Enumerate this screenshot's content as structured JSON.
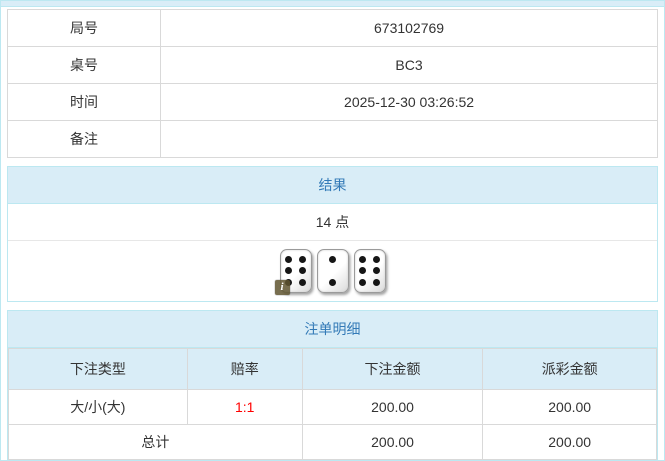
{
  "info_table": {
    "rows": [
      {
        "label": "局号",
        "value": "673102769"
      },
      {
        "label": "桌号",
        "value": "BC3"
      },
      {
        "label": "时间",
        "value": "2025-12-30 03:26:52"
      },
      {
        "label": "备注",
        "value": ""
      }
    ]
  },
  "result_panel": {
    "title": "结果",
    "points": "14 点",
    "dice": [
      6,
      2,
      6
    ],
    "info_badge": "i"
  },
  "bets_panel": {
    "title": "注单明细",
    "columns": [
      "下注类型",
      "赔率",
      "下注金额",
      "派彩金额"
    ],
    "rows": [
      {
        "type": "大/小(大)",
        "odds": "1:1",
        "bet": "200.00",
        "payout": "200.00"
      }
    ],
    "total": {
      "label": "总计",
      "bet": "200.00",
      "payout": "200.00"
    }
  },
  "colors": {
    "heading_bg": "#d9edf7",
    "heading_text": "#337ab7",
    "panel_border": "#bce8f1",
    "cell_border": "#d9d9d9",
    "odds_red": "#ff0000"
  }
}
